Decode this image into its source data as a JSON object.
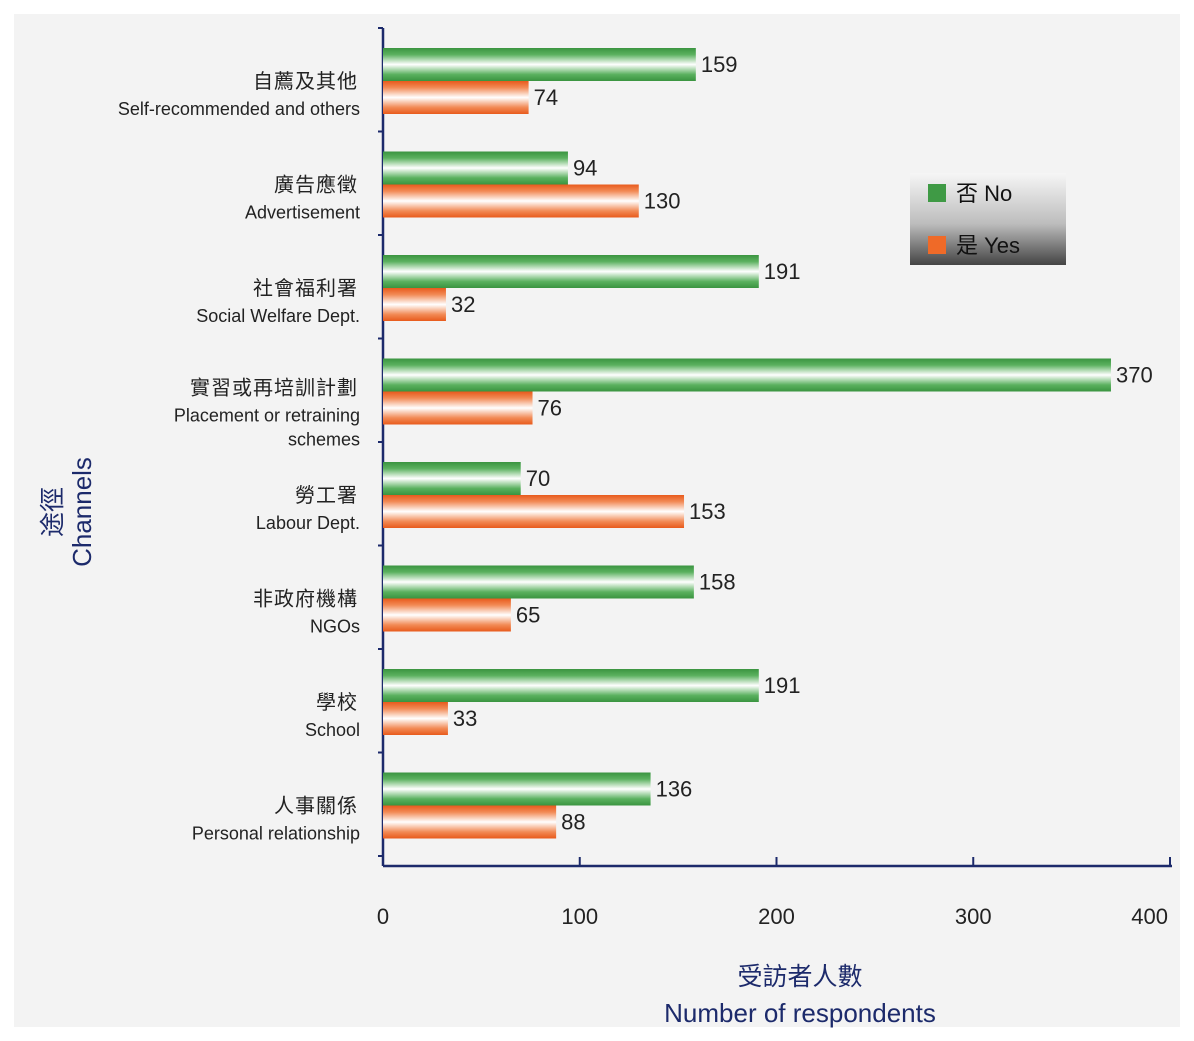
{
  "chart_data": {
    "type": "bar",
    "orientation": "horizontal",
    "categories": [
      {
        "zh": "自薦及其他",
        "en": [
          "Self-recommended and others"
        ]
      },
      {
        "zh": "廣告應徵",
        "en": [
          "Advertisement"
        ]
      },
      {
        "zh": "社會福利署",
        "en": [
          "Social Welfare Dept."
        ]
      },
      {
        "zh": "實習或再培訓計劃",
        "en": [
          "Placement or retraining",
          "schemes"
        ]
      },
      {
        "zh": "勞工署",
        "en": [
          "Labour Dept."
        ]
      },
      {
        "zh": "非政府機構",
        "en": [
          "NGOs"
        ]
      },
      {
        "zh": "學校",
        "en": [
          "School"
        ]
      },
      {
        "zh": "人事關係",
        "en": [
          "Personal relationship"
        ]
      }
    ],
    "series": [
      {
        "name": "否  No",
        "color": "#3f9a45",
        "values": [
          159,
          94,
          191,
          370,
          70,
          158,
          191,
          136
        ]
      },
      {
        "name": "是  Yes",
        "color": "#ef6a28",
        "values": [
          74,
          130,
          32,
          76,
          153,
          65,
          33,
          88
        ]
      }
    ],
    "xlim": [
      0,
      400
    ],
    "xticks": [
      0,
      100,
      200,
      300,
      400
    ],
    "xlabel_zh": "受訪者人數",
    "xlabel_en": "Number of respondents",
    "ylabel_zh": "途徑",
    "ylabel_en": "Channels",
    "legend_position": "right"
  }
}
